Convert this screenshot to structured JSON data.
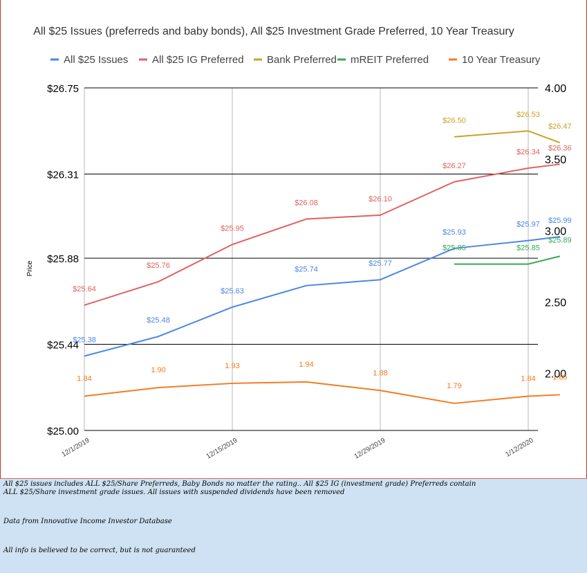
{
  "chart_data": {
    "type": "line",
    "title": "All $25 Issues (preferreds and baby bonds), All $25 Investment Grade Preferred, 10 Year Treasury",
    "ylabel": "Price",
    "ylim": [
      25.0,
      26.75
    ],
    "y2lim": [
      1.6,
      4.0
    ],
    "y_ticks": [
      "$26.75",
      "$26.31",
      "$25.88",
      "$25.44",
      "$25.00"
    ],
    "y2_ticks": [
      "4.00",
      "3.50",
      "3.00",
      "2.50",
      "2.00"
    ],
    "x_ticks": [
      "12/1/2019",
      "12/15/2019",
      "12/29/2019",
      "1/12/2020"
    ],
    "x": [
      "12/1/2019",
      "12/8/2019",
      "12/15/2019",
      "12/22/2019",
      "12/29/2019",
      "1/5/2020",
      "1/12/2020"
    ],
    "legend_position": "top",
    "grid": true,
    "series": [
      {
        "name": "All $25 Issues",
        "color": "#4a86e8",
        "axis": "left",
        "points": [
          [
            "12/1/2019",
            25.38
          ],
          [
            "12/8/2019",
            25.48
          ],
          [
            "12/15/2019",
            25.63
          ],
          [
            "12/22/2019",
            25.74
          ],
          [
            "12/29/2019",
            25.77
          ],
          [
            "1/5/2020",
            25.93
          ],
          [
            "1/12/2020",
            25.97
          ],
          [
            "1/15/2020",
            25.99
          ]
        ],
        "labels": [
          "$25.38",
          "$25.48",
          "$25.63",
          "$25.74",
          "$25.77",
          "$25.93",
          "$25.97",
          "$25.99"
        ]
      },
      {
        "name": "All $25 IG Preferred",
        "color": "#e06060",
        "axis": "left",
        "points": [
          [
            "12/1/2019",
            25.64
          ],
          [
            "12/8/2019",
            25.76
          ],
          [
            "12/15/2019",
            25.95
          ],
          [
            "12/22/2019",
            26.08
          ],
          [
            "12/29/2019",
            26.1
          ],
          [
            "1/5/2020",
            26.27
          ],
          [
            "1/12/2020",
            26.34
          ],
          [
            "1/15/2020",
            26.36
          ]
        ],
        "labels": [
          "$25.64",
          "$25.76",
          "$25.95",
          "$26.08",
          "$26.10",
          "$26.27",
          "$26.34",
          "$26.36"
        ]
      },
      {
        "name": "Bank Preferred",
        "color": "#c9a227",
        "axis": "left",
        "points": [
          [
            "1/5/2020",
            26.5
          ],
          [
            "1/12/2020",
            26.53
          ],
          [
            "1/15/2020",
            26.47
          ]
        ],
        "labels": [
          "$26.50",
          "$26.53",
          "$26.47"
        ]
      },
      {
        "name": "mREIT Preferred",
        "color": "#34a853",
        "axis": "left",
        "points": [
          [
            "1/5/2020",
            25.85
          ],
          [
            "1/12/2020",
            25.85
          ],
          [
            "1/15/2020",
            25.89
          ]
        ],
        "labels": [
          "$25.85",
          "$25.85",
          "$25.89"
        ]
      },
      {
        "name": "10 Year Treasury",
        "color": "#f47b20",
        "axis": "right",
        "points": [
          [
            "12/1/2019",
            1.84
          ],
          [
            "12/8/2019",
            1.9
          ],
          [
            "12/15/2019",
            1.93
          ],
          [
            "12/22/2019",
            1.94
          ],
          [
            "12/29/2019",
            1.88
          ],
          [
            "1/5/2020",
            1.79
          ],
          [
            "1/12/2020",
            1.84
          ],
          [
            "1/15/2020",
            1.85
          ]
        ],
        "labels": [
          "1.84",
          "1.90",
          "1.93",
          "1.94",
          "1.88",
          "1.79",
          "1.84",
          "1.85"
        ]
      }
    ]
  },
  "notes": {
    "line1": "All $25 issues includes ALL $25/Share Preferreds, Baby Bonds no matter the rating..  All $25 IG (investment grade) Preferreds contain",
    "line2": "ALL $25/Share investment grade issues.  All issues with suspended dividends have been removed",
    "source": "Data from Innovative Income Investor Database",
    "disclaimer": "All info is believed to be correct, but is not guaranteed"
  }
}
